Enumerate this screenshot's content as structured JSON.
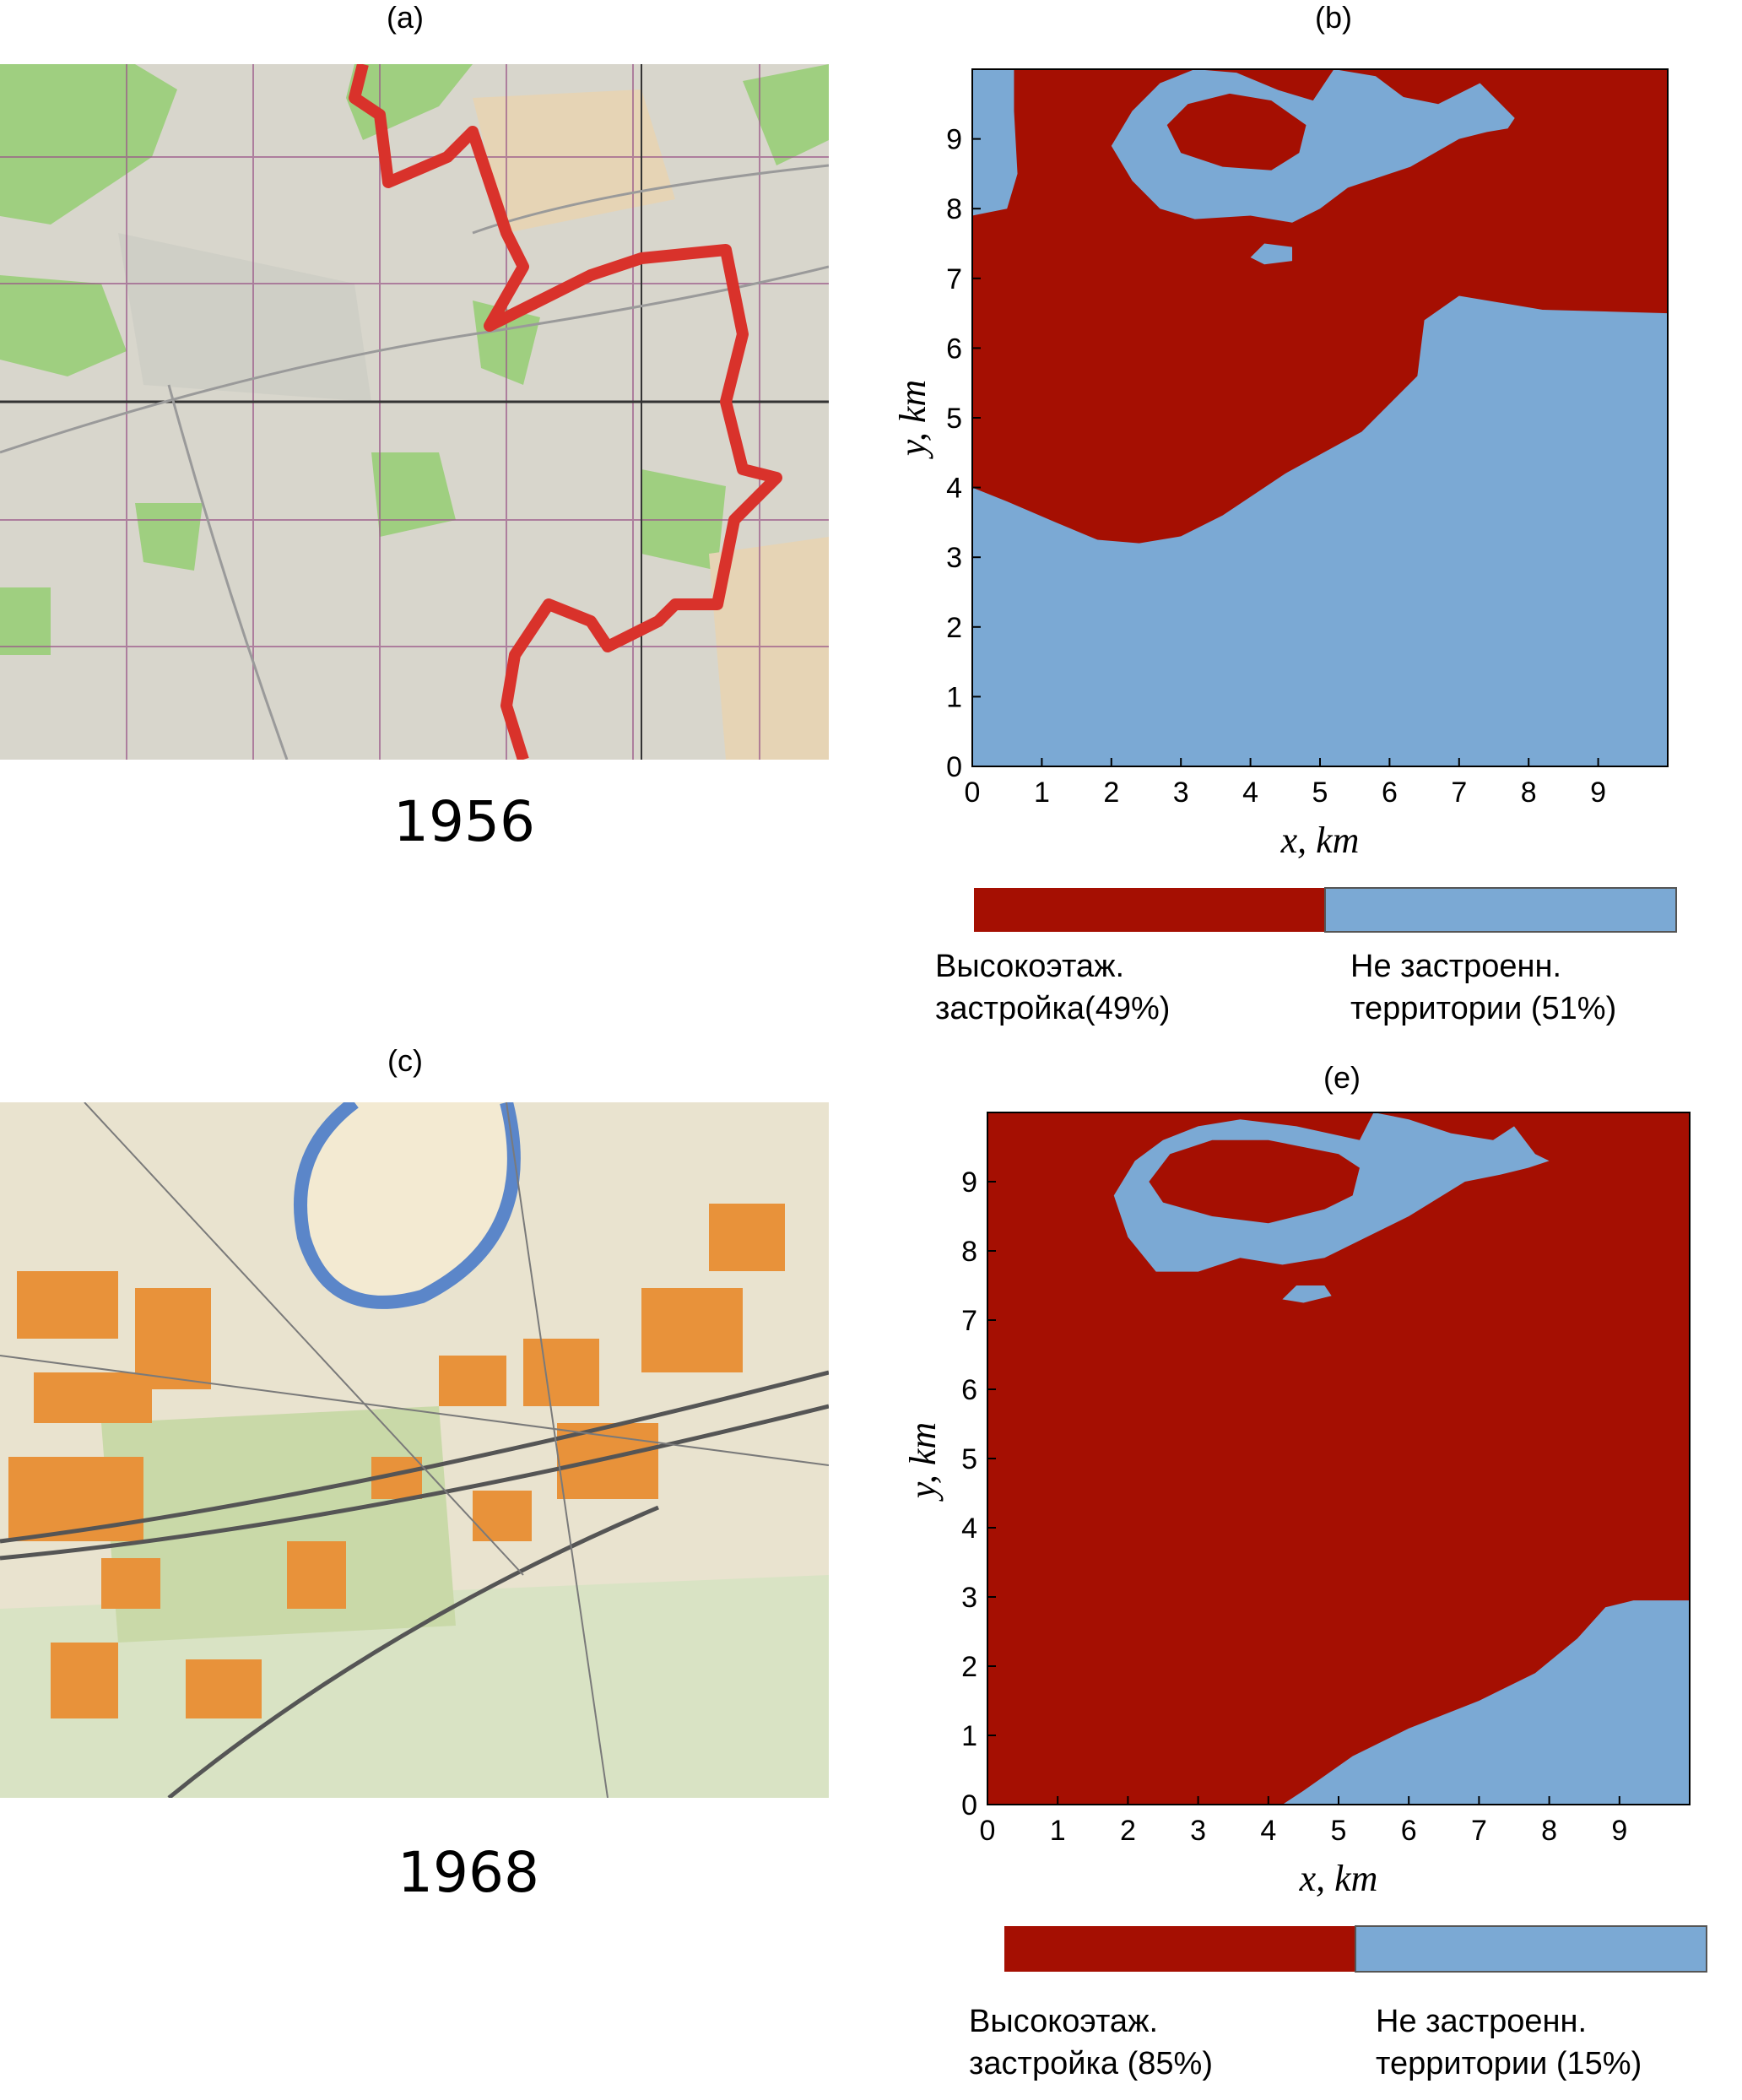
{
  "panels": {
    "a": {
      "label": "(a)",
      "year": "1956"
    },
    "b": {
      "label": "(b)"
    },
    "c": {
      "label": "(c)",
      "year": "1968"
    },
    "e": {
      "label": "(e)"
    }
  },
  "colors": {
    "built": "#a50f02",
    "unbuilt": "#7ba9d4"
  },
  "chart_data": [
    {
      "id": "b",
      "type": "heatmap",
      "title": "(b)",
      "xlabel": "x, km",
      "ylabel": "y, km",
      "xlim": [
        0,
        10
      ],
      "ylim": [
        0,
        10
      ],
      "xticks": [
        "0",
        "1",
        "2",
        "3",
        "4",
        "5",
        "6",
        "7",
        "8",
        "9"
      ],
      "yticks": [
        "0",
        "1",
        "2",
        "3",
        "4",
        "5",
        "6",
        "7",
        "8",
        "9"
      ],
      "categories": [
        "Высокоэтаж. застройка(49%)",
        "Не застроенн. территории (51%)"
      ],
      "values": [
        49,
        51
      ],
      "legend": {
        "position": "bottom",
        "built_label": [
          "Высокоэтаж.",
          "застройка(49%)"
        ],
        "unbuilt_label": [
          "Не застроенн.",
          "территории (51%)"
        ]
      }
    },
    {
      "id": "e",
      "type": "heatmap",
      "title": "(e)",
      "xlabel": "x, km",
      "ylabel": "y, km",
      "xlim": [
        0,
        10
      ],
      "ylim": [
        0,
        10
      ],
      "xticks": [
        "0",
        "1",
        "2",
        "3",
        "4",
        "5",
        "6",
        "7",
        "8",
        "9"
      ],
      "yticks": [
        "0",
        "1",
        "2",
        "3",
        "4",
        "5",
        "6",
        "7",
        "8",
        "9"
      ],
      "categories": [
        "Высокоэтаж. застройка (85%)",
        "Не застроенн. территории (15%)"
      ],
      "values": [
        85,
        15
      ],
      "legend": {
        "position": "bottom",
        "built_label": [
          "Высокоэтаж.",
          "застройка (85%)"
        ],
        "unbuilt_label": [
          "Не застроенн.",
          "территории (15%)"
        ]
      }
    }
  ]
}
